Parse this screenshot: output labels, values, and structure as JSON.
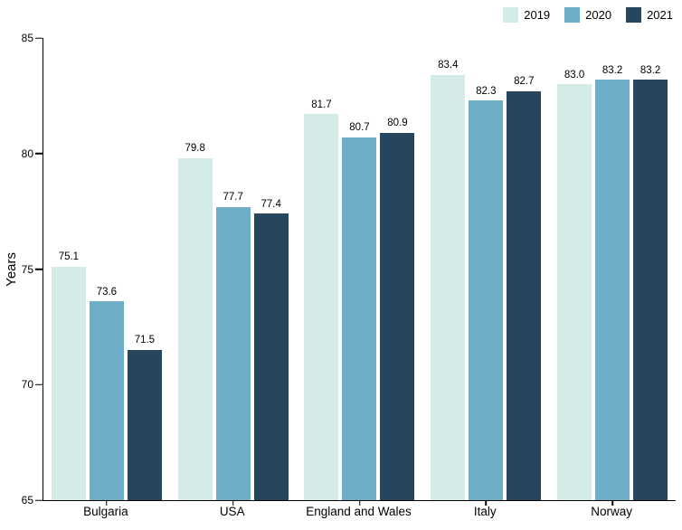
{
  "chart_data": {
    "type": "bar",
    "title": "",
    "xlabel": "",
    "ylabel": "Years",
    "ylim": [
      65,
      85
    ],
    "yticks": [
      65,
      70,
      75,
      80,
      85
    ],
    "grid": false,
    "legend_position": "top-right",
    "value_label_decimals": 1,
    "categories": [
      "Bulgaria",
      "USA",
      "England and Wales",
      "Italy",
      "Norway"
    ],
    "series": [
      {
        "name": "2019",
        "color": "#d5ebe8",
        "values": [
          75.1,
          79.8,
          81.7,
          83.4,
          83.0
        ]
      },
      {
        "name": "2020",
        "color": "#6dadc8",
        "values": [
          73.6,
          77.7,
          80.7,
          82.3,
          83.2
        ]
      },
      {
        "name": "2021",
        "color": "#26465f",
        "values": [
          71.5,
          77.4,
          80.9,
          82.7,
          83.2
        ]
      }
    ]
  },
  "colors": {
    "background": "#ffffff",
    "axis": "#000000",
    "text": "#000000"
  }
}
